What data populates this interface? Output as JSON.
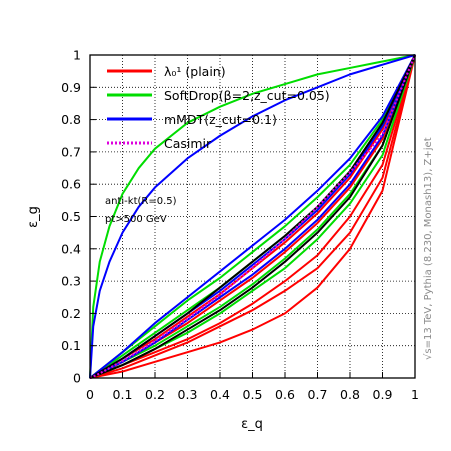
{
  "chart_data": {
    "type": "line",
    "title": "",
    "xlabel": "ε_q",
    "ylabel": "ε_g",
    "xlim": [
      0,
      1
    ],
    "ylim": [
      0,
      1
    ],
    "x_ticks": [
      "0",
      "0.1",
      "0.2",
      "0.3",
      "0.4",
      "0.5",
      "0.6",
      "0.7",
      "0.8",
      "0.9",
      "1"
    ],
    "y_ticks": [
      "0",
      "0.1",
      "0.2",
      "0.3",
      "0.4",
      "0.5",
      "0.6",
      "0.7",
      "0.8",
      "0.9",
      "1"
    ],
    "grid": true,
    "legend_position": "top-left",
    "legend": [
      {
        "label": "λ₀¹ (plain)",
        "color": "#ff0000",
        "style": "solid"
      },
      {
        "label": "SoftDrop(β=2,z_cut=0.05)",
        "color": "#00dd00",
        "style": "solid"
      },
      {
        "label": "mMDT(z_cut=0.1)",
        "color": "#0000ff",
        "style": "solid"
      },
      {
        "label": "Casimir",
        "color": "#dd00dd",
        "style": "dotted"
      }
    ],
    "annotations": {
      "algorithm": "anti-kt(R=0.5)",
      "cut": "pt>500 GeV",
      "side": "√s=13 TeV, Pythia (8.230, Monash13), Z+jet"
    },
    "series": [
      {
        "name": "Casimir",
        "color": "#dd00dd",
        "style": "dotted",
        "x": [
          0,
          0.02,
          0.05,
          0.1,
          0.15,
          0.2,
          0.3,
          0.4,
          0.5,
          0.6,
          0.7,
          0.8,
          0.9,
          1.0
        ],
        "y": [
          0,
          0.009,
          0.025,
          0.053,
          0.083,
          0.115,
          0.183,
          0.258,
          0.341,
          0.431,
          0.53,
          0.637,
          0.754,
          1.0
        ]
      },
      {
        "name": "SoftDrop(β=2,z_cut=0.05)",
        "color": "#00dd00",
        "style": "solid",
        "x": [
          0,
          0.01,
          0.03,
          0.06,
          0.1,
          0.15,
          0.2,
          0.3,
          0.4,
          0.5,
          0.6,
          0.7,
          0.8,
          0.9,
          1.0
        ],
        "y": [
          0,
          0.22,
          0.36,
          0.47,
          0.57,
          0.65,
          0.71,
          0.79,
          0.84,
          0.88,
          0.91,
          0.94,
          0.96,
          0.98,
          1.0
        ]
      },
      {
        "name": "mMDT(z_cut=0.1)",
        "color": "#0000ff",
        "style": "solid",
        "x": [
          0,
          0.01,
          0.03,
          0.06,
          0.1,
          0.15,
          0.2,
          0.3,
          0.4,
          0.5,
          0.6,
          0.7,
          0.8,
          0.9,
          1.0
        ],
        "y": [
          0,
          0.16,
          0.27,
          0.36,
          0.45,
          0.53,
          0.59,
          0.68,
          0.75,
          0.81,
          0.86,
          0.9,
          0.94,
          0.97,
          1.0
        ]
      },
      {
        "name": "λ₀¹ (plain)",
        "color": "#ff0000",
        "style": "solid",
        "x": [
          0,
          0.1,
          0.2,
          0.3,
          0.4,
          0.5,
          0.6,
          0.7,
          0.8,
          0.9,
          1.0
        ],
        "y": [
          0,
          0.04,
          0.08,
          0.12,
          0.17,
          0.23,
          0.3,
          0.38,
          0.5,
          0.66,
          1.0
        ]
      },
      {
        "name": "λ₀¹ (plain)",
        "color": "#ff0000",
        "style": "solid",
        "x": [
          0,
          0.1,
          0.2,
          0.3,
          0.4,
          0.5,
          0.6,
          0.7,
          0.8,
          0.9,
          1.0
        ],
        "y": [
          0,
          0.02,
          0.05,
          0.08,
          0.11,
          0.15,
          0.2,
          0.28,
          0.4,
          0.58,
          1.0
        ]
      },
      {
        "name": "λ₀¹ (plain)",
        "color": "#ff0000",
        "style": "solid",
        "x": [
          0,
          0.1,
          0.2,
          0.3,
          0.4,
          0.5,
          0.6,
          0.7,
          0.8,
          0.9,
          1.0
        ],
        "y": [
          0,
          0.05,
          0.11,
          0.17,
          0.24,
          0.31,
          0.39,
          0.48,
          0.59,
          0.74,
          1.0
        ]
      },
      {
        "name": "λ₀¹ (plain)",
        "color": "#ff0000",
        "style": "solid",
        "x": [
          0,
          0.1,
          0.2,
          0.3,
          0.4,
          0.5,
          0.6,
          0.7,
          0.8,
          0.9,
          1.0
        ],
        "y": [
          0,
          0.03,
          0.07,
          0.11,
          0.16,
          0.21,
          0.27,
          0.34,
          0.45,
          0.62,
          1.0
        ]
      },
      {
        "name": "λ₀¹ (plain)",
        "color": "#ff0000",
        "style": "solid",
        "x": [
          0,
          0.1,
          0.2,
          0.3,
          0.4,
          0.5,
          0.6,
          0.7,
          0.8,
          0.9,
          1.0
        ],
        "y": [
          0,
          0.06,
          0.12,
          0.19,
          0.26,
          0.34,
          0.42,
          0.51,
          0.62,
          0.77,
          1.0
        ]
      },
      {
        "name": "SoftDrop(β=2,z_cut=0.05)",
        "color": "#00dd00",
        "style": "solid",
        "x": [
          0,
          0.1,
          0.2,
          0.3,
          0.4,
          0.5,
          0.6,
          0.7,
          0.8,
          0.9,
          1.0
        ],
        "y": [
          0,
          0.05,
          0.1,
          0.16,
          0.22,
          0.29,
          0.37,
          0.46,
          0.57,
          0.72,
          1.0
        ]
      },
      {
        "name": "SoftDrop(β=2,z_cut=0.05)",
        "color": "#00dd00",
        "style": "solid",
        "x": [
          0,
          0.1,
          0.2,
          0.3,
          0.4,
          0.5,
          0.6,
          0.7,
          0.8,
          0.9,
          1.0
        ],
        "y": [
          0,
          0.07,
          0.14,
          0.21,
          0.28,
          0.36,
          0.44,
          0.53,
          0.64,
          0.78,
          1.0
        ]
      },
      {
        "name": "SoftDrop(β=2,z_cut=0.05)",
        "color": "#00dd00",
        "style": "solid",
        "x": [
          0,
          0.1,
          0.2,
          0.3,
          0.4,
          0.5,
          0.6,
          0.7,
          0.8,
          0.9,
          1.0
        ],
        "y": [
          0,
          0.04,
          0.09,
          0.14,
          0.2,
          0.27,
          0.34,
          0.43,
          0.54,
          0.69,
          1.0
        ]
      },
      {
        "name": "SoftDrop(β=2,z_cut=0.05)",
        "color": "#00dd00",
        "style": "solid",
        "x": [
          0,
          0.1,
          0.2,
          0.3,
          0.4,
          0.5,
          0.6,
          0.7,
          0.8,
          0.9,
          1.0
        ],
        "y": [
          0,
          0.08,
          0.16,
          0.24,
          0.31,
          0.39,
          0.47,
          0.56,
          0.66,
          0.8,
          1.0
        ]
      },
      {
        "name": "mMDT(z_cut=0.1)",
        "color": "#0000ff",
        "style": "solid",
        "x": [
          0,
          0.1,
          0.2,
          0.3,
          0.4,
          0.5,
          0.6,
          0.7,
          0.8,
          0.9,
          1.0
        ],
        "y": [
          0,
          0.06,
          0.13,
          0.2,
          0.27,
          0.35,
          0.43,
          0.52,
          0.63,
          0.78,
          1.0
        ]
      },
      {
        "name": "mMDT(z_cut=0.1)",
        "color": "#0000ff",
        "style": "solid",
        "x": [
          0,
          0.1,
          0.2,
          0.3,
          0.4,
          0.5,
          0.6,
          0.7,
          0.8,
          0.9,
          1.0
        ],
        "y": [
          0,
          0.08,
          0.17,
          0.25,
          0.33,
          0.41,
          0.49,
          0.58,
          0.68,
          0.81,
          1.0
        ]
      },
      {
        "name": "mMDT(z_cut=0.1)",
        "color": "#0000ff",
        "style": "solid",
        "x": [
          0,
          0.1,
          0.2,
          0.3,
          0.4,
          0.5,
          0.6,
          0.7,
          0.8,
          0.9,
          1.0
        ],
        "y": [
          0,
          0.05,
          0.11,
          0.18,
          0.25,
          0.32,
          0.4,
          0.49,
          0.6,
          0.75,
          1.0
        ]
      },
      {
        "name": "black",
        "color": "#000000",
        "style": "solid",
        "x": [
          0,
          0.1,
          0.2,
          0.3,
          0.4,
          0.5,
          0.6,
          0.7,
          0.8,
          0.9,
          1.0
        ],
        "y": [
          0,
          0.04,
          0.09,
          0.15,
          0.21,
          0.28,
          0.36,
          0.45,
          0.56,
          0.72,
          1.0
        ]
      },
      {
        "name": "black",
        "color": "#000000",
        "style": "solid",
        "x": [
          0,
          0.1,
          0.2,
          0.3,
          0.4,
          0.5,
          0.6,
          0.7,
          0.8,
          0.9,
          1.0
        ],
        "y": [
          0,
          0.06,
          0.13,
          0.2,
          0.28,
          0.36,
          0.44,
          0.53,
          0.64,
          0.79,
          1.0
        ]
      }
    ]
  }
}
